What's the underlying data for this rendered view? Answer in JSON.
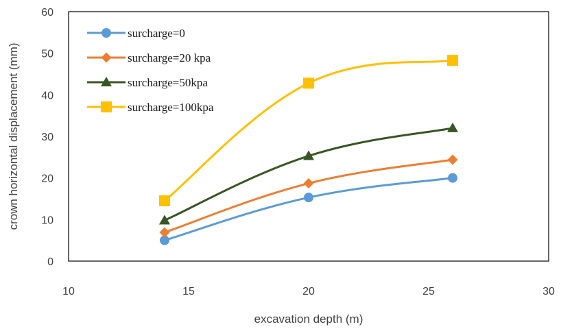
{
  "chart_data": {
    "type": "line",
    "title": "",
    "xlabel": "excavation depth (m)",
    "ylabel": "crown horizontal displacement (mm)",
    "xlim": [
      10,
      30
    ],
    "ylim": [
      0,
      60
    ],
    "xticks": [
      10,
      15,
      20,
      25,
      30
    ],
    "yticks": [
      0,
      10,
      20,
      30,
      40,
      50,
      60
    ],
    "grid": false,
    "smooth": true,
    "legend_position": "top-left inside",
    "x": [
      14,
      20,
      26
    ],
    "series": [
      {
        "name": "surcharge=0",
        "values": [
          5.0,
          15.3,
          20.0
        ],
        "color": "#5B9BD5",
        "marker": "circle"
      },
      {
        "name": "surcharge=20 kpa",
        "values": [
          6.9,
          18.7,
          24.4
        ],
        "color": "#ED7D31",
        "marker": "diamond"
      },
      {
        "name": "surcharge=50kpa",
        "values": [
          9.8,
          25.3,
          32.0
        ],
        "color": "#375623",
        "marker": "triangle"
      },
      {
        "name": "surcharge=100kpa",
        "values": [
          14.5,
          42.8,
          48.3
        ],
        "color": "#FFC000",
        "marker": "square"
      }
    ]
  }
}
